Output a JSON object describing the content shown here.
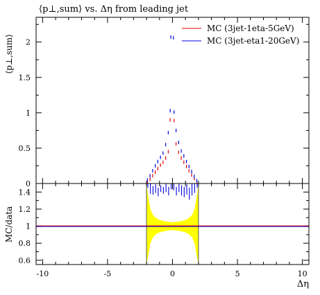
{
  "chart_data": [
    {
      "type": "scatter",
      "title": "⟨p⊥,sum⟩ vs. Δη from leading jet",
      "ylabel": "⟨p⊥,sum⟩",
      "xlim": [
        -10.5,
        10.5
      ],
      "ylim": [
        0,
        2.35
      ],
      "x_ticks": [
        "-10",
        "-5",
        "0",
        "5",
        "10"
      ],
      "y_ticks": [
        {
          "v": 0,
          "label": "0"
        },
        {
          "v": 0.5,
          "label": "0.5"
        },
        {
          "v": 1,
          "label": "1"
        },
        {
          "v": 1.5,
          "label": "1.5"
        },
        {
          "v": 2,
          "label": "2"
        }
      ],
      "legend_position": "top-right",
      "series": [
        {
          "name": "MC (3jet-1eta-5GeV)",
          "color": "#e00000",
          "points": [
            [
              -1.9,
              0.02
            ],
            [
              -1.7,
              0.06
            ],
            [
              -1.5,
              0.11
            ],
            [
              -1.3,
              0.16
            ],
            [
              -1.1,
              0.21
            ],
            [
              -0.9,
              0.26
            ],
            [
              -0.7,
              0.3
            ],
            [
              -0.5,
              0.36
            ],
            [
              -0.3,
              0.45
            ],
            [
              -0.15,
              0.9
            ],
            [
              0.15,
              0.89
            ],
            [
              0.3,
              0.56
            ],
            [
              0.5,
              0.44
            ],
            [
              0.7,
              0.36
            ],
            [
              0.9,
              0.3
            ],
            [
              1.1,
              0.24
            ],
            [
              1.3,
              0.18
            ],
            [
              1.5,
              0.12
            ],
            [
              1.7,
              0.07
            ],
            [
              1.9,
              0.02
            ]
          ]
        },
        {
          "name": "MC (3jet-eta1-20GeV)",
          "color": "#0000e0",
          "points": [
            [
              -1.9,
              0.05
            ],
            [
              -1.7,
              0.11
            ],
            [
              -1.5,
              0.18
            ],
            [
              -1.3,
              0.25
            ],
            [
              -1.1,
              0.31
            ],
            [
              -0.9,
              0.37
            ],
            [
              -0.7,
              0.43
            ],
            [
              -0.5,
              0.55
            ],
            [
              -0.3,
              0.72
            ],
            [
              -0.15,
              1.03
            ],
            [
              -0.1,
              2.07
            ],
            [
              0.1,
              2.06
            ],
            [
              0.15,
              1.01
            ],
            [
              0.3,
              0.75
            ],
            [
              0.5,
              0.58
            ],
            [
              0.7,
              0.46
            ],
            [
              0.9,
              0.39
            ],
            [
              1.1,
              0.31
            ],
            [
              1.3,
              0.24
            ],
            [
              1.5,
              0.17
            ],
            [
              1.7,
              0.1
            ],
            [
              1.9,
              0.04
            ]
          ]
        }
      ]
    },
    {
      "type": "scatter",
      "ylabel": "MC/data",
      "xlabel": "Δη",
      "xlim": [
        -10.5,
        10.5
      ],
      "ylim": [
        0.55,
        1.5
      ],
      "x_ticks": [
        "-10",
        "-5",
        "0",
        "5",
        "10"
      ],
      "y_ticks": [
        {
          "v": 0.6,
          "label": "0.6"
        },
        {
          "v": 0.8,
          "label": "0.8"
        },
        {
          "v": 1,
          "label": "1"
        },
        {
          "v": 1.2,
          "label": "1.2"
        },
        {
          "v": 1.4,
          "label": "1.4"
        }
      ],
      "reference_line": 1.0,
      "band": {
        "color": "#ffff00",
        "x": [
          -2.0,
          -1.9,
          -1.7,
          -1.5,
          -1.3,
          -1.1,
          -0.9,
          -0.7,
          -0.5,
          -0.3,
          0.0,
          0.3,
          0.5,
          0.7,
          0.9,
          1.1,
          1.3,
          1.5,
          1.7,
          1.9,
          2.0
        ],
        "low": [
          0.55,
          0.62,
          0.8,
          0.87,
          0.9,
          0.92,
          0.93,
          0.94,
          0.945,
          0.95,
          0.955,
          0.95,
          0.945,
          0.94,
          0.93,
          0.92,
          0.9,
          0.87,
          0.8,
          0.62,
          0.55
        ],
        "high": [
          1.5,
          1.38,
          1.2,
          1.13,
          1.1,
          1.08,
          1.07,
          1.06,
          1.055,
          1.05,
          1.045,
          1.05,
          1.055,
          1.06,
          1.07,
          1.08,
          1.1,
          1.13,
          1.2,
          1.38,
          1.5
        ]
      },
      "ratio_points": {
        "color": "#0000e0",
        "x": [
          -1.9,
          -1.7,
          -1.5,
          -1.3,
          -1.1,
          -0.9,
          -0.7,
          -0.5,
          -0.3,
          -0.1,
          0.1,
          0.3,
          0.5,
          0.7,
          0.9,
          1.1,
          1.3,
          1.5,
          1.7,
          1.9
        ],
        "y": [
          1.5,
          1.44,
          1.42,
          1.44,
          1.4,
          1.44,
          1.42,
          1.45,
          1.41,
          1.47,
          1.46,
          1.41,
          1.45,
          1.42,
          1.4,
          1.43,
          1.38,
          1.43,
          1.45,
          1.5
        ],
        "err": [
          0.05,
          0.06,
          0.05,
          0.05,
          0.05,
          0.04,
          0.04,
          0.05,
          0.05,
          0.04,
          0.04,
          0.05,
          0.05,
          0.06,
          0.06,
          0.06,
          0.07,
          0.07,
          0.06,
          0.05
        ]
      }
    }
  ]
}
